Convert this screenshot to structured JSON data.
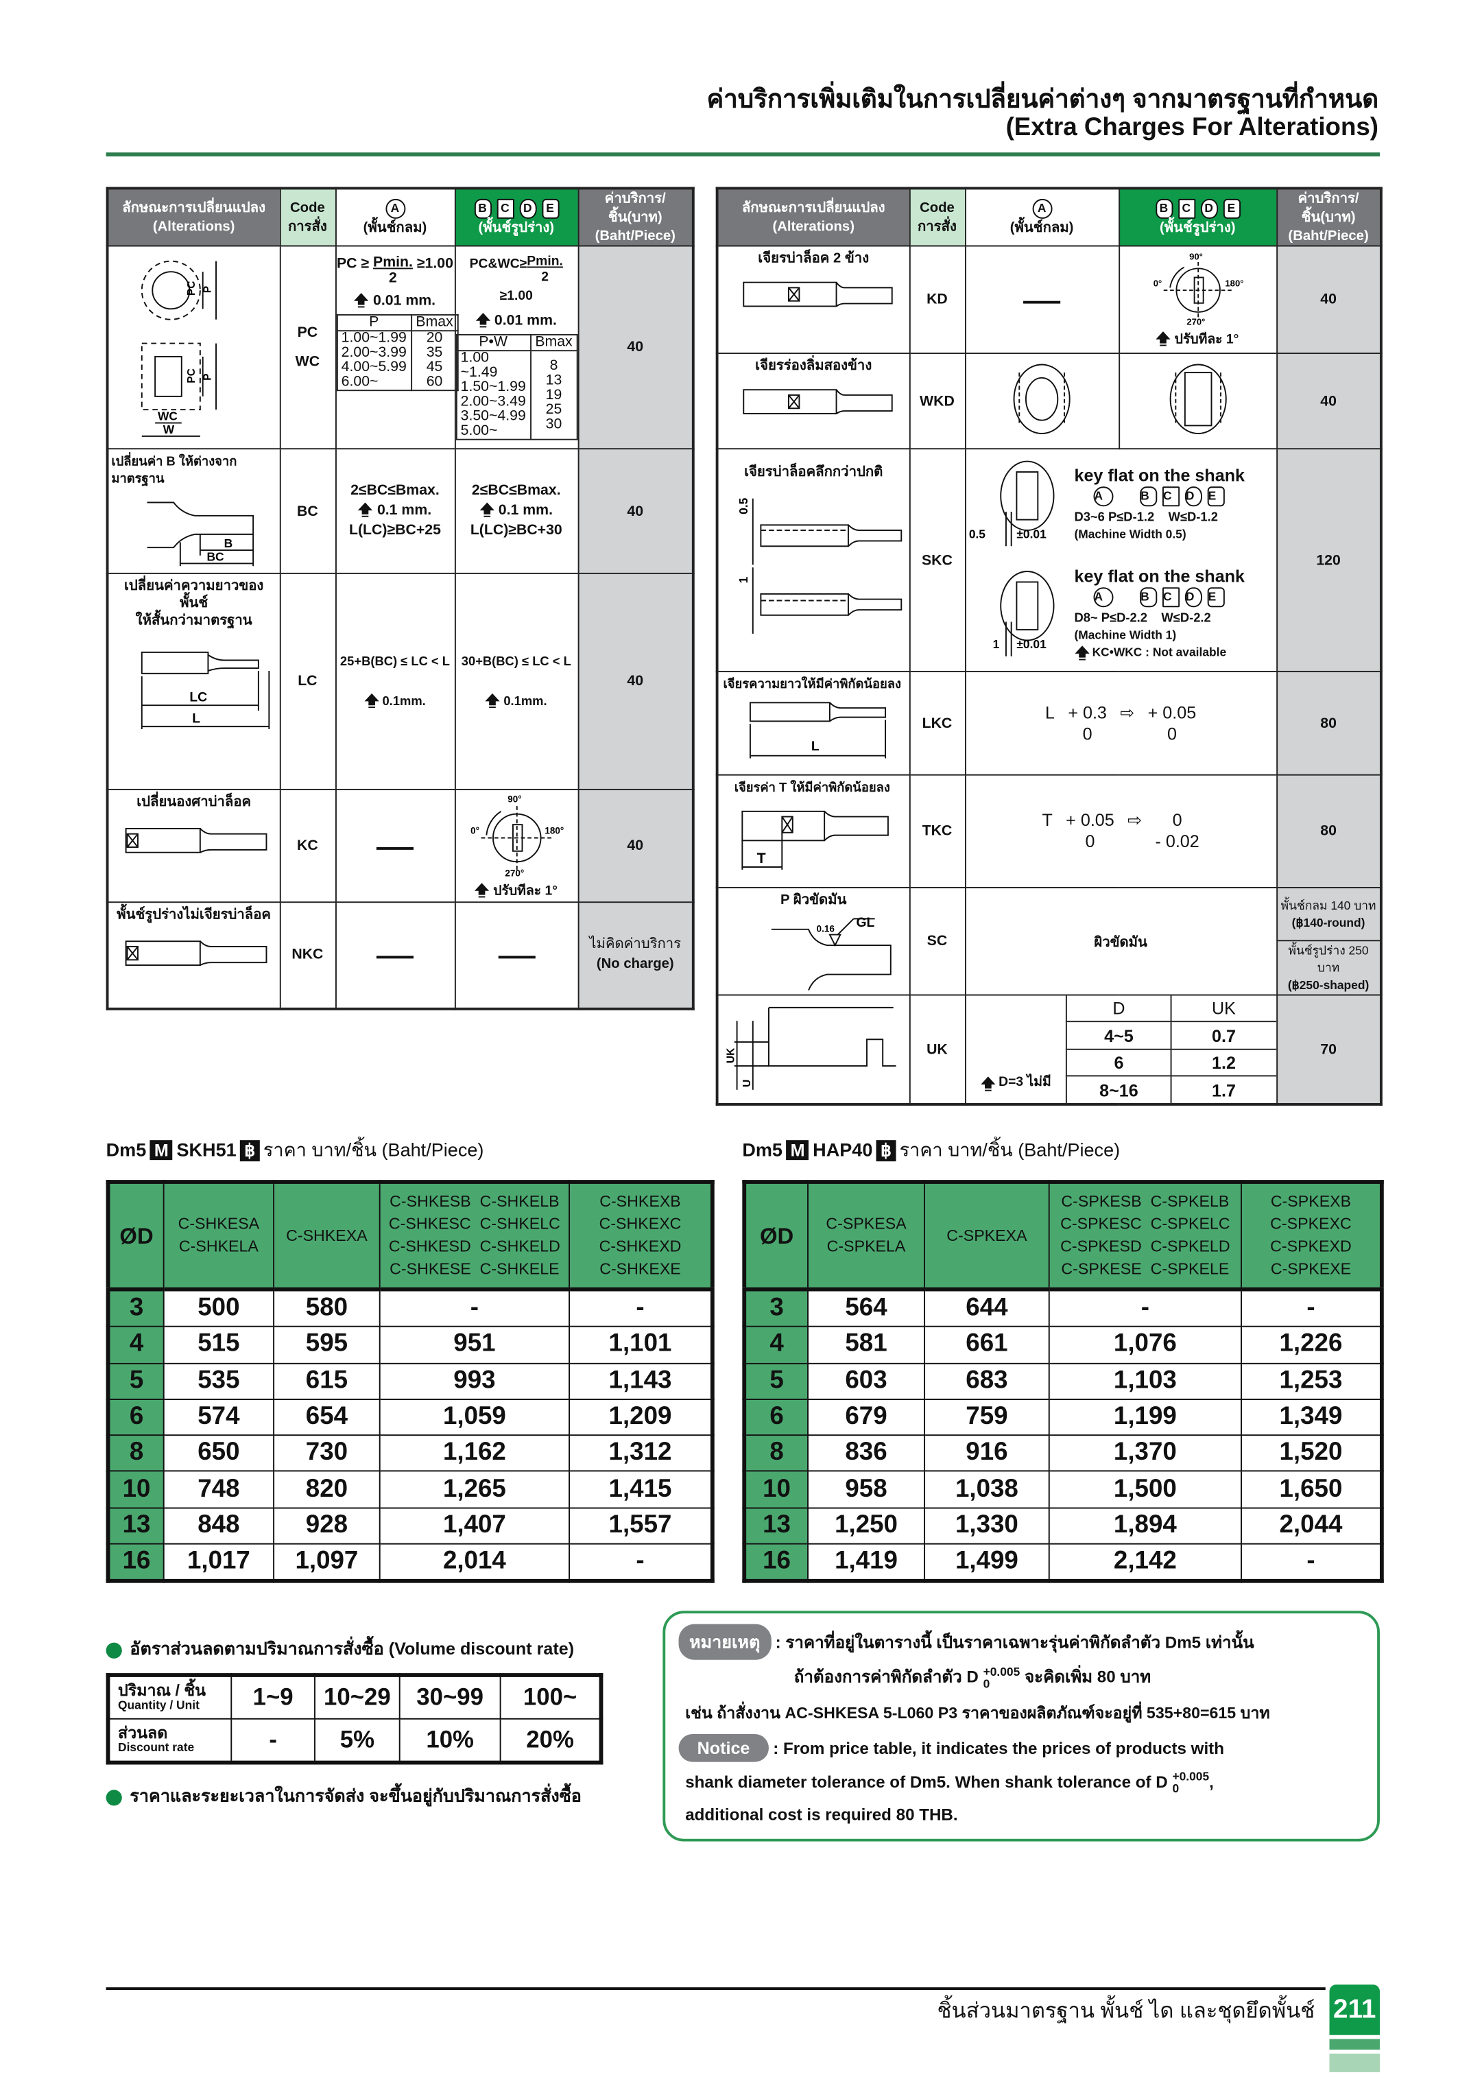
{
  "header": {
    "title_th": "ค่าบริการเพิ่มเติมในการเปลี่ยนค่าต่างๆ จากมาตรฐานที่กำหนด",
    "title_en": "(Extra Charges For Alterations)"
  },
  "colors": {
    "brand_green": "#0e9a48",
    "header_gray": "#77787b",
    "price_gray": "#d1d3d4",
    "table_green": "#4aa86f"
  },
  "alt_headers": {
    "alterations_th": "ลักษณะการเปลี่ยนแปลง",
    "alterations_en": "(Alterations)",
    "code_en": "Code",
    "code_th": "การสั่ง",
    "a_badge": "A",
    "a_label": "(พั้นช์กลม)",
    "bcde_badges": [
      "B",
      "C",
      "D",
      "E"
    ],
    "bcde_label": "(พั้นช์รูปร่าง)",
    "price_th": "ค่าบริการ/ชิ้น(บาท)",
    "price_en": "(Baht/Piece)"
  },
  "icons": {
    "up_arrow": "up-arrow-icon",
    "right_arrow": "hollow-right-arrow-icon"
  },
  "left_rows": {
    "pcwc": {
      "diagram": {
        "pc": "PC",
        "p": "P",
        "wc": "WC",
        "w": "W"
      },
      "code_1": "PC",
      "code_2": "WC",
      "a": {
        "pre": "PC ≥",
        "num": "Pmin.",
        "den": "2",
        "post": "≥1.00",
        "step": "0.01 mm.",
        "table_head": [
          "P",
          "Bmax"
        ],
        "table_rows": [
          [
            "1.00~1.99",
            "20"
          ],
          [
            "2.00~3.99",
            "35"
          ],
          [
            "4.00~5.99",
            "45"
          ],
          [
            "6.00~",
            "60"
          ]
        ]
      },
      "bcde": {
        "pre": "PC&WC≥",
        "num": "Pmin.",
        "den": "2",
        "post": "≥1.00",
        "step": "0.01 mm.",
        "table_head": [
          "P•W",
          "Bmax"
        ],
        "table_rows": [
          [
            "1.00 ~1.49",
            "8"
          ],
          [
            "1.50~1.99",
            "13"
          ],
          [
            "2.00~3.49",
            "19"
          ],
          [
            "3.50~4.99",
            "25"
          ],
          [
            "5.00~",
            "30"
          ]
        ]
      },
      "price": "40"
    },
    "bc": {
      "label": "เปลี่ยนค่า B ให้ต่างจากมาตรฐาน",
      "diagram": {
        "b": "B",
        "bc": "BC"
      },
      "code": "BC",
      "a": {
        "l1": "2≤BC≤Bmax.",
        "step": "0.1 mm.",
        "l3": "L(LC)≥BC+25"
      },
      "bcde": {
        "l1": "2≤BC≤Bmax.",
        "step": "0.1 mm.",
        "l3": "L(LC)≥BC+30"
      },
      "price": "40"
    },
    "lc": {
      "label_1": "เปลี่ยนค่าความยาวของพั้นช์",
      "label_2": "ให้สั้นกว่ามาตรฐาน",
      "diagram": {
        "lc": "LC",
        "l": "L"
      },
      "code": "LC",
      "a": {
        "l1": "25+B(BC) ≤ LC < L",
        "step": "0.1mm."
      },
      "bcde": {
        "l1": "30+B(BC) ≤ LC < L",
        "step": "0.1mm."
      },
      "price": "40"
    },
    "kc": {
      "label": "เปลี่ยนองศาบ่าล็อค",
      "code": "KC",
      "a": "—",
      "bcde": {
        "deg90": "90°",
        "deg0": "0°",
        "deg180": "180°",
        "deg270": "270°",
        "step": "ปรับทีละ 1°"
      },
      "price": "40"
    },
    "nkc": {
      "label": "พั้นช์รูปร่างไม่เจียรบ่าล็อค",
      "code": "NKC",
      "a": "—",
      "bcde": "—",
      "price_th": "ไม่คิดค่าบริการ",
      "price_en": "(No charge)"
    }
  },
  "right_rows": {
    "kd": {
      "label": "เจียรบ่าล็อค 2 ข้าง",
      "code": "KD",
      "a": "—",
      "bcde": {
        "deg90": "90°",
        "deg0": "0°",
        "deg180": "180°",
        "deg270": "270°",
        "step": "ปรับทีละ 1°"
      },
      "price": "40"
    },
    "wkd": {
      "label": "เจียรร่องลิ่มสองข้าง",
      "code": "WKD",
      "price": "40"
    },
    "skc": {
      "label": "เจียรบ่าล็อคลึกกว่าปกติ",
      "diagram": {
        "d1": "0.5",
        "d2": "1"
      },
      "code": "SKC",
      "block1": {
        "dim": "0.5",
        "tol": "±0.01",
        "title": "key flat on the shank",
        "spec_p": "D3~6  P≤D-1.2",
        "spec_w": "W≤D-1.2",
        "note": "(Machine Width 0.5)"
      },
      "block2": {
        "dim": "1",
        "tol": "±0.01",
        "title": "key flat on the shank",
        "spec_p": "D8~  P≤D-2.2",
        "spec_w": "W≤D-2.2",
        "note": "(Machine Width 1)",
        "warning": "KC•WKC : Not available"
      },
      "price": "120"
    },
    "lkc": {
      "label": "เจียรความยาวให้มีค่าพิกัดน้อยลง",
      "diagram": {
        "l": "L"
      },
      "code": "LKC",
      "sym": "L",
      "from_up": "+ 0.3",
      "from_low": "0",
      "to_up": "+ 0.05",
      "to_low": "0",
      "price": "80"
    },
    "tkc": {
      "label": "เจียรค่า T ให้มีค่าพิกัดน้อยลง",
      "diagram": {
        "t": "T"
      },
      "code": "TKC",
      "sym": "T",
      "from_up": "+ 0.05",
      "from_low": "0",
      "to_up": "0",
      "to_low": "- 0.02",
      "price": "80"
    },
    "sc": {
      "label": "P ผิวขัดมัน",
      "diagram": {
        "gl": "GL",
        "ra": "0.16"
      },
      "code": "SC",
      "middle": "ผิวขัดมัน",
      "price_round_th": "พั้นช์กลม 140 บาท",
      "price_round_en": "(฿140-round)",
      "price_shaped_th": "พั้นช์รูปร่าง 250 บาท",
      "price_shaped_en": "(฿250-shaped)"
    },
    "uk": {
      "diagram": {
        "uk": "UK",
        "u": "U"
      },
      "code": "UK",
      "note": "D=3 ไม่มี",
      "table_head": [
        "D",
        "UK"
      ],
      "table_rows": [
        [
          "4~5",
          "0.7"
        ],
        [
          "6",
          "1.2"
        ],
        [
          "8~16",
          "1.7"
        ]
      ],
      "price": "70"
    }
  },
  "price_tables": [
    {
      "title_pre": "Dm5",
      "badge_m": "M",
      "material": "SKH51",
      "badge_b": "฿",
      "title_post": "ราคา บาท/ชิ้น (Baht/Piece)",
      "headers": {
        "od": "ØD",
        "c1": [
          "C-SHKESA",
          "C-SHKELA"
        ],
        "c2": [
          "C-SHKEXA"
        ],
        "c3": [
          "C-SHKESB  C-SHKELB",
          "C-SHKESC  C-SHKELC",
          "C-SHKESD  C-SHKELD",
          "C-SHKESE  C-SHKELE"
        ],
        "c4": [
          "C-SHKEXB",
          "C-SHKEXC",
          "C-SHKEXD",
          "C-SHKEXE"
        ]
      },
      "rows": [
        [
          "3",
          "500",
          "580",
          "-",
          "-"
        ],
        [
          "4",
          "515",
          "595",
          "951",
          "1,101"
        ],
        [
          "5",
          "535",
          "615",
          "993",
          "1,143"
        ],
        [
          "6",
          "574",
          "654",
          "1,059",
          "1,209"
        ],
        [
          "8",
          "650",
          "730",
          "1,162",
          "1,312"
        ],
        [
          "10",
          "748",
          "820",
          "1,265",
          "1,415"
        ],
        [
          "13",
          "848",
          "928",
          "1,407",
          "1,557"
        ],
        [
          "16",
          "1,017",
          "1,097",
          "2,014",
          "-"
        ]
      ]
    },
    {
      "title_pre": "Dm5",
      "badge_m": "M",
      "material": "HAP40",
      "badge_b": "฿",
      "title_post": "ราคา บาท/ชิ้น (Baht/Piece)",
      "headers": {
        "od": "ØD",
        "c1": [
          "C-SPKESA",
          "C-SPKELA"
        ],
        "c2": [
          "C-SPKEXA"
        ],
        "c3": [
          "C-SPKESB  C-SPKELB",
          "C-SPKESC  C-SPKELC",
          "C-SPKESD  C-SPKELD",
          "C-SPKESE  C-SPKELE"
        ],
        "c4": [
          "C-SPKEXB",
          "C-SPKEXC",
          "C-SPKEXD",
          "C-SPKEXE"
        ]
      },
      "rows": [
        [
          "3",
          "564",
          "644",
          "-",
          "-"
        ],
        [
          "4",
          "581",
          "661",
          "1,076",
          "1,226"
        ],
        [
          "5",
          "603",
          "683",
          "1,103",
          "1,253"
        ],
        [
          "6",
          "679",
          "759",
          "1,199",
          "1,349"
        ],
        [
          "8",
          "836",
          "916",
          "1,370",
          "1,520"
        ],
        [
          "10",
          "958",
          "1,038",
          "1,500",
          "1,650"
        ],
        [
          "13",
          "1,250",
          "1,330",
          "1,894",
          "2,044"
        ],
        [
          "16",
          "1,419",
          "1,499",
          "2,142",
          "-"
        ]
      ]
    }
  ],
  "volume": {
    "title": "อัตราส่วนลดตามปริมาณการสั่งซื้อ (Volume discount rate)",
    "qty_th": "ปริมาณ / ชิ้น",
    "qty_en": "Quantity / Unit",
    "qty": [
      "1~9",
      "10~29",
      "30~99",
      "100~"
    ],
    "disc_th": "ส่วนลด",
    "disc_en": "Discount rate",
    "disc": [
      "-",
      "5%",
      "10%",
      "20%"
    ],
    "note": "ราคาและระยะเวลาในการจัดส่ง จะขึ้นอยู่กับปริมาณการสั่งซื้อ"
  },
  "notice": {
    "pill_th": "หมายเหตุ",
    "line1": ": ราคาที่อยู่ในตารางนี้ เป็นราคาเฉพาะรุ่นค่าพิกัดลำตัว Dm5 เท่านั้น",
    "line2_pre": "ถ้าต้องการค่าพิกัดลำตัว D",
    "tol_up": "+0.005",
    "tol_low": "0",
    "line2_post": "จะคิดเพิ่ม 80 บาท",
    "line3": "เช่น ถ้าสั่งงาน AC-SHKESA 5-L060 P3 ราคาของผลิตภัณฑ์จะอยู่ที่ 535+80=615 บาท",
    "pill_en": "Notice",
    "en1": ": From price table, it indicates the prices of products with",
    "en2_pre": "shank diameter tolerance of Dm5. When shank tolerance of D",
    "en2_post": ",",
    "en3": "additional cost is required 80 THB."
  },
  "footer": {
    "text": "ชิ้นส่วนมาตรฐาน  พั้นช์  ได  และชุดยึดพั้นช์",
    "page": "211"
  }
}
